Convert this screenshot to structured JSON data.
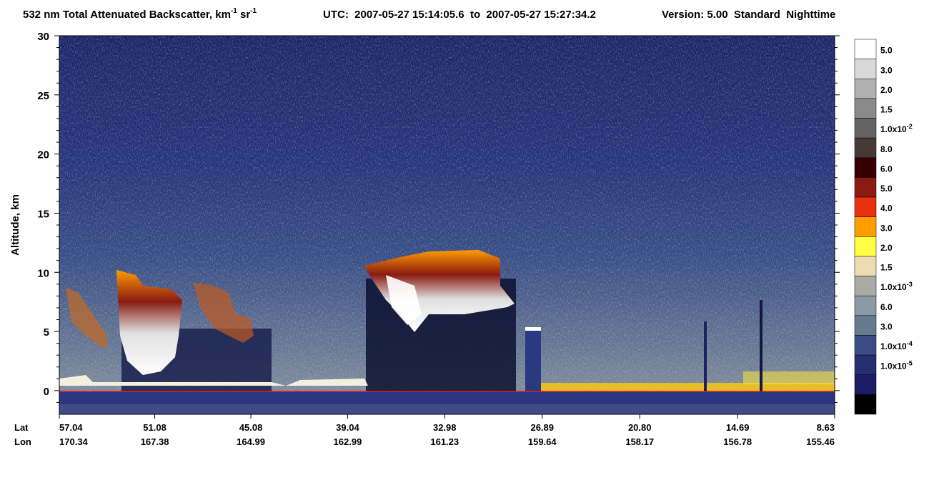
{
  "chart_data": {
    "type": "curtain",
    "title": [
      "532 nm Total Attenuated Backscatter, km",
      "-1",
      " sr",
      "-1"
    ],
    "subtitle": "UTC:  2007-05-27 15:14:05.6  to  2007-05-27 15:27:34.2",
    "version": "Version: 5.00  Standard  Nighttime",
    "ylabel": "Altitude, km",
    "ylim": [
      -2,
      30
    ],
    "yticks": [
      0,
      5,
      10,
      15,
      20,
      25,
      30
    ],
    "xlim": [
      57.04,
      8.63
    ],
    "x_row_labels": [
      "Lat",
      "Lon"
    ],
    "xticks": [
      57.04,
      51.08,
      45.08,
      39.04,
      32.98,
      26.89,
      {
        "value": 20.8,
        "label": "20.80"
      },
      14.69,
      8.63
    ],
    "lon_ticks": [
      170.34,
      167.38,
      164.99,
      162.99,
      161.23,
      159.64,
      158.17,
      156.78,
      155.46
    ],
    "colorbar": {
      "colors": [
        "#ffffff",
        "#d9d9d9",
        "#b0b0b0",
        "#8a8a8a",
        "#646464",
        "#463a36",
        "#360000",
        "#8a1a12",
        "#e8300e",
        "#ff9c00",
        "#ffff44",
        "#eadcb0",
        "#a8aca4",
        "#8a9aa6",
        "#667a90",
        "#3a4c82",
        "#262e72",
        "#1a1c66",
        "#000000"
      ],
      "labels": [
        "5.0",
        "3.0",
        "2.0",
        "1.5",
        {
          "text": "1.0x10",
          "exponent": "-2"
        },
        "8.0",
        "6.0",
        "5.0",
        "4.0",
        "3.0",
        "2.0",
        "1.5",
        {
          "text": "1.0x10",
          "exponent": "-3"
        },
        "6.0",
        "3.0",
        {
          "text": "1.0x10",
          "exponent": "-4"
        },
        {
          "text": "1.0x10",
          "exponent": "-5"
        }
      ]
    }
  }
}
